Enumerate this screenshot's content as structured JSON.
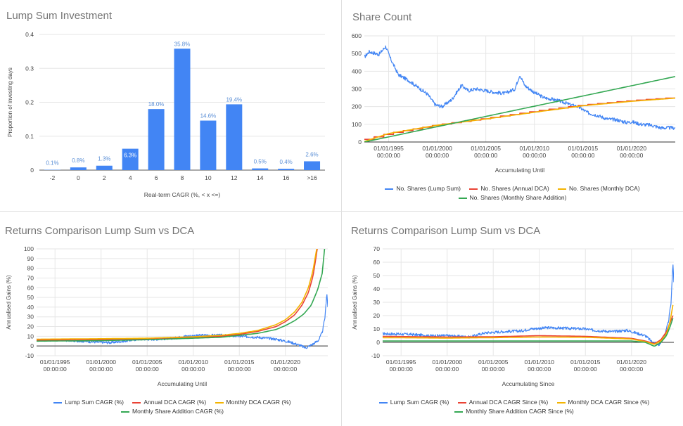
{
  "colors": {
    "blue": "#4285f4",
    "red": "#ea4335",
    "orange": "#f4b400",
    "green": "#34a853",
    "grid": "#e6e6e6",
    "axis": "#999999"
  },
  "charts": {
    "lump": {
      "title": "Lump Sum Investment"
    },
    "shares": {
      "title": "Share Count",
      "legend": [
        "No. Shares (Lump Sum)",
        "No. Shares (Annual DCA)",
        "No. Shares (Monthly DCA)",
        "No. Shares (Monthly Share Addition)"
      ]
    },
    "returns1": {
      "title": "Returns Comparison Lump Sum vs DCA",
      "legend": [
        "Lump Sum CAGR (%)",
        "Annual DCA CAGR (%)",
        "Monthly DCA CAGR (%)",
        "Monthly Share Addition CAGR (%)"
      ]
    },
    "returns2": {
      "title": "Returns Comparison Lump Sum vs DCA",
      "legend": [
        "Lump Sum CAGR (%)",
        "Annual DCA CAGR Since (%)",
        "Monthly DCA CAGR Since (%)",
        "Monthly Share Addition CAGR Since (%)"
      ]
    }
  },
  "chart_data": [
    {
      "type": "bar",
      "title": "Lump Sum Investment",
      "categories": [
        "-2",
        "0",
        "2",
        "4",
        "6",
        "8",
        "10",
        "12",
        "14",
        "16",
        ">16"
      ],
      "values": [
        0.001,
        0.008,
        0.013,
        0.063,
        0.18,
        0.358,
        0.146,
        0.194,
        0.005,
        0.004,
        0.026
      ],
      "labels": [
        "0.1%",
        "0.8%",
        "1.3%",
        "6.3%",
        "18.0%",
        "35.8%",
        "14.6%",
        "19.4%",
        "0.5%",
        "0.4%",
        "2.6%"
      ],
      "xlabel": "Real-term CAGR (%, < x <=)",
      "ylabel": "Proportion of investing days",
      "ylim": [
        0,
        0.4
      ],
      "yticks": [
        "0",
        "0.1",
        "0.2",
        "0.3",
        "0.4"
      ]
    },
    {
      "type": "line",
      "title": "Share Count",
      "xlabel": "Accumulating Until",
      "ylabel": "",
      "ylim": [
        0,
        600
      ],
      "yticks": [
        "0",
        "100",
        "200",
        "300",
        "400",
        "500",
        "600"
      ],
      "xlim": [
        1992.5,
        2024.5
      ],
      "xticks": [
        {
          "year": 1995,
          "label": "01/01/1995",
          "sub": "00:00:00"
        },
        {
          "year": 2000,
          "label": "01/01/2000",
          "sub": "00:00:00"
        },
        {
          "year": 2005,
          "label": "01/01/2005",
          "sub": "00:00:00"
        },
        {
          "year": 2010,
          "label": "01/01/2010",
          "sub": "00:00:00"
        },
        {
          "year": 2015,
          "label": "01/01/2015",
          "sub": "00:00:00"
        },
        {
          "year": 2020,
          "label": "01/01/2020",
          "sub": "00:00:00"
        }
      ],
      "series": [
        {
          "name": "No. Shares (Lump Sum)",
          "color": "#4285f4",
          "noise": 10,
          "x": [
            1992.5,
            1993,
            1994,
            1994.7,
            1995.2,
            1996,
            1997,
            1998,
            1999,
            1999.8,
            2000.5,
            2001.5,
            2002.5,
            2003.2,
            2004,
            2005,
            2006,
            2007,
            2008,
            2008.5,
            2009,
            2009.5,
            2010,
            2011,
            2012,
            2013,
            2013.7,
            2014.5,
            2015.5,
            2016.5,
            2017.5,
            2018.5,
            2019.5,
            2020,
            2021,
            2022,
            2023,
            2024.5
          ],
          "y": [
            480,
            510,
            495,
            540,
            470,
            380,
            350,
            310,
            270,
            210,
            200,
            240,
            320,
            290,
            300,
            290,
            280,
            275,
            300,
            380,
            320,
            300,
            280,
            250,
            240,
            225,
            210,
            200,
            165,
            150,
            130,
            125,
            110,
            115,
            100,
            95,
            80,
            80
          ]
        },
        {
          "name": "No. Shares (Annual DCA)",
          "color": "#ea4335",
          "noise": 0,
          "step": true,
          "x": [
            1992.5,
            1995,
            2000,
            2005,
            2010,
            2015,
            2020,
            2024.5
          ],
          "y": [
            15,
            50,
            98,
            135,
            175,
            210,
            235,
            252
          ]
        },
        {
          "name": "No. Shares (Monthly DCA)",
          "color": "#f4b400",
          "noise": 0,
          "x": [
            1992.5,
            1995,
            2000,
            2005,
            2010,
            2015,
            2020,
            2024.5
          ],
          "y": [
            3,
            48,
            95,
            130,
            168,
            205,
            230,
            248
          ]
        },
        {
          "name": "No. Shares (Monthly Share Addition)",
          "color": "#34a853",
          "noise": 0,
          "x": [
            1992.5,
            2024.5
          ],
          "y": [
            0,
            370
          ]
        }
      ]
    },
    {
      "type": "line",
      "title": "Returns Comparison Lump Sum vs DCA",
      "xlabel": "Accumulating Until",
      "ylabel": "Annualised Gains (%)",
      "ylim": [
        -10,
        100
      ],
      "yticks": [
        "-10",
        "0",
        "10",
        "20",
        "30",
        "40",
        "50",
        "60",
        "70",
        "80",
        "90",
        "100"
      ],
      "xlim": [
        1993,
        2024.6
      ],
      "xticks": [
        {
          "year": 1995,
          "label": "01/01/1995",
          "sub": "00:00:00"
        },
        {
          "year": 2000,
          "label": "01/01/2000",
          "sub": "00:00:00"
        },
        {
          "year": 2005,
          "label": "01/01/2005",
          "sub": "00:00:00"
        },
        {
          "year": 2010,
          "label": "01/01/2010",
          "sub": "00:00:00"
        },
        {
          "year": 2015,
          "label": "01/01/2015",
          "sub": "00:00:00"
        },
        {
          "year": 2020,
          "label": "01/01/2020",
          "sub": "00:00:00"
        }
      ],
      "series": [
        {
          "name": "Lump Sum CAGR (%)",
          "color": "#4285f4",
          "noise": 1.3,
          "x": [
            1993,
            1996,
            1998,
            1999.5,
            2001,
            2002.5,
            2004,
            2006,
            2008,
            2009,
            2011,
            2013,
            2015,
            2017,
            2019,
            2020.5,
            2021.5,
            2022.2,
            2023,
            2023.6,
            2024,
            2024.3,
            2024.5,
            2024.6
          ],
          "y": [
            6,
            6,
            5,
            4,
            3.5,
            5,
            7,
            7,
            8,
            10,
            11,
            11,
            10,
            9,
            7,
            4,
            1,
            -2,
            2,
            6,
            14,
            30,
            55,
            40
          ]
        },
        {
          "name": "Annual DCA CAGR (%)",
          "color": "#ea4335",
          "noise": 0,
          "x": [
            1993,
            2000,
            2005,
            2010,
            2013,
            2015,
            2017,
            2019,
            2020,
            2021,
            2021.8,
            2022.5,
            2023,
            2023.3,
            2023.5
          ],
          "y": [
            6,
            6.5,
            7,
            8.5,
            10,
            12,
            15,
            20,
            25,
            32,
            42,
            55,
            72,
            90,
            103
          ]
        },
        {
          "name": "Monthly DCA CAGR (%)",
          "color": "#f4b400",
          "noise": 0,
          "x": [
            1993,
            2000,
            2005,
            2010,
            2013,
            2015,
            2017,
            2019,
            2020,
            2021,
            2021.8,
            2022.5,
            2023,
            2023.3,
            2023.5
          ],
          "y": [
            7,
            7.5,
            8,
            9.5,
            11,
            13,
            16,
            22,
            27,
            35,
            45,
            60,
            78,
            95,
            105
          ]
        },
        {
          "name": "Monthly Share Addition CAGR (%)",
          "color": "#34a853",
          "noise": 0,
          "x": [
            1993,
            2000,
            2005,
            2010,
            2013,
            2015,
            2017,
            2019,
            2020,
            2021,
            2022,
            2022.8,
            2023.5,
            2024,
            2024.3
          ],
          "y": [
            5,
            5.5,
            6.5,
            8,
            9,
            11,
            13,
            17,
            21,
            26,
            33,
            42,
            58,
            75,
            105
          ]
        }
      ]
    },
    {
      "type": "line",
      "title": "Returns Comparison Lump Sum vs DCA",
      "xlabel": "Accumulating Since",
      "ylabel": "Annualised Gains (%)",
      "ylim": [
        -10,
        70
      ],
      "yticks": [
        "-10",
        "0",
        "10",
        "20",
        "30",
        "40",
        "50",
        "60",
        "70"
      ],
      "xlim": [
        1993,
        2024.6
      ],
      "xticks": [
        {
          "year": 1995,
          "label": "01/01/1995",
          "sub": "00:00:00"
        },
        {
          "year": 2000,
          "label": "01/01/2000",
          "sub": "00:00:00"
        },
        {
          "year": 2005,
          "label": "01/01/2005",
          "sub": "00:00:00"
        },
        {
          "year": 2010,
          "label": "01/01/2010",
          "sub": "00:00:00"
        },
        {
          "year": 2015,
          "label": "01/01/2015",
          "sub": "00:00:00"
        },
        {
          "year": 2020,
          "label": "01/01/2020",
          "sub": "00:00:00"
        }
      ],
      "series": [
        {
          "name": "Lump Sum CAGR (%)",
          "color": "#4285f4",
          "noise": 1.0,
          "x": [
            1993,
            1996,
            1998,
            2000,
            2002.5,
            2004,
            2006,
            2008,
            2009,
            2011,
            2013,
            2015,
            2016,
            2018,
            2019.5,
            2020.5,
            2021.5,
            2022.3,
            2023,
            2023.6,
            2024,
            2024.3,
            2024.5,
            2024.6
          ],
          "y": [
            6.5,
            6,
            5,
            5,
            4,
            7,
            8,
            8.5,
            10,
            11,
            10.5,
            10,
            9,
            8,
            9,
            7,
            5,
            0,
            -2,
            5,
            15,
            30,
            60,
            45
          ]
        },
        {
          "name": "Annual DCA CAGR Since (%)",
          "color": "#ea4335",
          "noise": 0,
          "x": [
            1993,
            2000,
            2005,
            2010,
            2015,
            2020,
            2021.5,
            2022.5,
            2023.2,
            2023.8,
            2024.2,
            2024.5
          ],
          "y": [
            4.5,
            4,
            4.2,
            5,
            4.5,
            3,
            1,
            -1,
            2,
            8,
            15,
            20
          ]
        },
        {
          "name": "Monthly DCA CAGR Since (%)",
          "color": "#f4b400",
          "noise": 0,
          "x": [
            1993,
            2000,
            2005,
            2010,
            2015,
            2020,
            2021.5,
            2022.5,
            2023.2,
            2023.8,
            2024.2,
            2024.5
          ],
          "y": [
            3.5,
            3.2,
            3.5,
            4,
            3.8,
            2.5,
            0.5,
            -1.5,
            1,
            6,
            16,
            28
          ]
        },
        {
          "name": "Monthly Share Addition CAGR Since (%)",
          "color": "#34a853",
          "noise": 0,
          "x": [
            1993,
            2000,
            2005,
            2010,
            2015,
            2020,
            2021.5,
            2022.5,
            2023.2,
            2023.8,
            2024.2,
            2024.5
          ],
          "y": [
            1,
            1,
            1,
            1,
            1,
            1,
            0,
            -3,
            0,
            5,
            12,
            18
          ]
        }
      ]
    }
  ]
}
